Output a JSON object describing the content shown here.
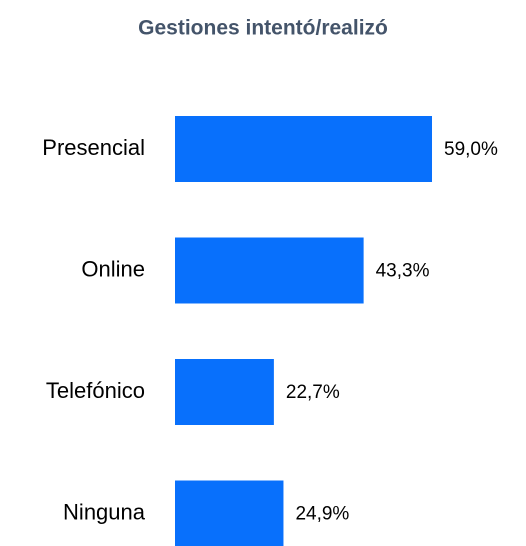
{
  "chart_data": {
    "type": "barh",
    "title": "Gestiones intentó/realizó",
    "categories": [
      "Presencial",
      "Online",
      "Telefónico",
      "Ninguna"
    ],
    "values": [
      59.0,
      43.3,
      22.7,
      24.9
    ],
    "value_labels": [
      "59,0%",
      "43,3%",
      "22,7%",
      "24,9%"
    ],
    "color": "#0870fc"
  }
}
